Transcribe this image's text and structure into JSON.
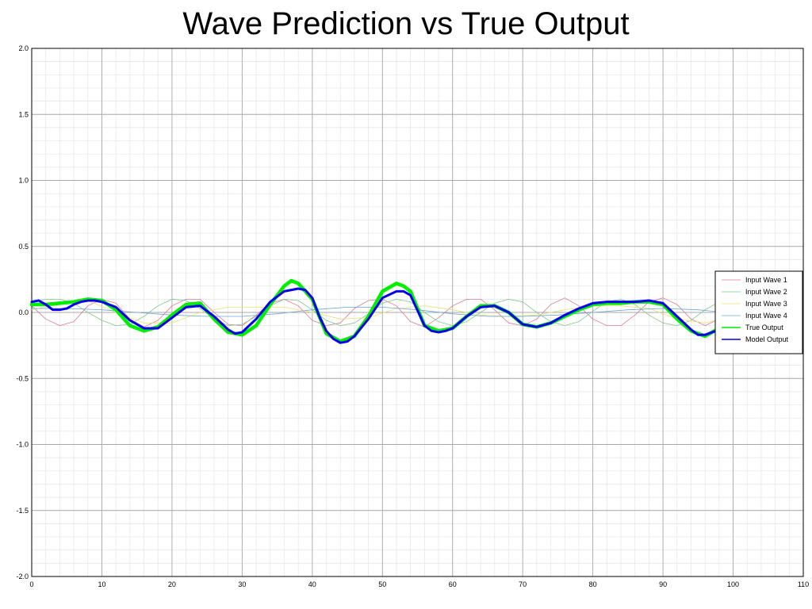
{
  "chart_data": {
    "type": "line",
    "title": "Wave Prediction vs True Output",
    "xlabel": "",
    "ylabel": "",
    "xlim": [
      0,
      110
    ],
    "ylim": [
      -2.0,
      2.0
    ],
    "x_ticks": [
      0,
      10,
      20,
      30,
      40,
      50,
      60,
      70,
      80,
      90,
      100,
      110
    ],
    "y_ticks": [
      "2.0",
      "1.5",
      "1.0",
      "0.5",
      "0.0",
      "-0.5",
      "-1.0",
      "-1.5",
      "-2.0"
    ],
    "grid": true,
    "legend_position": "right",
    "series": [
      {
        "name": "Input Wave 1",
        "color": "#d97a9a",
        "width": 0.8,
        "x": [
          0,
          2,
          4,
          6,
          8,
          10,
          12,
          14,
          16,
          18,
          20,
          22,
          24,
          26,
          28,
          30,
          32,
          34,
          36,
          38,
          40,
          42,
          44,
          46,
          48,
          50,
          52,
          54,
          56,
          58,
          60,
          62,
          64,
          66,
          68,
          70,
          72,
          74,
          76,
          78,
          80,
          82,
          84,
          86,
          88,
          90,
          92,
          94,
          96,
          98
        ],
        "y": [
          0.05,
          -0.05,
          -0.1,
          -0.07,
          0.05,
          0.1,
          0.07,
          -0.05,
          -0.11,
          -0.06,
          0.05,
          0.1,
          0.1,
          0.0,
          -0.09,
          -0.1,
          -0.02,
          0.07,
          0.1,
          0.05,
          -0.06,
          -0.1,
          -0.08,
          0.03,
          0.09,
          0.1,
          0.05,
          -0.07,
          -0.11,
          -0.04,
          0.05,
          0.1,
          0.1,
          0.02,
          -0.08,
          -0.1,
          -0.05,
          0.06,
          0.11,
          0.05,
          -0.05,
          -0.1,
          -0.1,
          -0.02,
          0.08,
          0.11,
          0.06,
          -0.05,
          -0.1,
          -0.05
        ]
      },
      {
        "name": "Input Wave 2",
        "color": "#7fc98a",
        "width": 0.8,
        "x": [
          0,
          2,
          4,
          6,
          8,
          10,
          12,
          14,
          16,
          18,
          20,
          22,
          24,
          26,
          28,
          30,
          32,
          34,
          36,
          38,
          40,
          42,
          44,
          46,
          48,
          50,
          52,
          54,
          56,
          58,
          60,
          62,
          64,
          66,
          68,
          70,
          72,
          74,
          76,
          78,
          80,
          82,
          84,
          86,
          88,
          90,
          92,
          94,
          96,
          98
        ],
        "y": [
          0.08,
          0.1,
          0.1,
          0.07,
          0.0,
          -0.06,
          -0.1,
          -0.09,
          -0.03,
          0.05,
          0.1,
          0.09,
          0.03,
          -0.05,
          -0.1,
          -0.09,
          -0.03,
          0.05,
          0.1,
          0.09,
          0.02,
          -0.06,
          -0.1,
          -0.08,
          -0.01,
          0.07,
          0.1,
          0.08,
          0.0,
          -0.07,
          -0.1,
          -0.07,
          0.0,
          0.07,
          0.1,
          0.08,
          0.0,
          -0.07,
          -0.1,
          -0.07,
          0.01,
          0.08,
          0.1,
          0.06,
          -0.02,
          -0.08,
          -0.1,
          -0.06,
          0.02,
          0.08
        ]
      },
      {
        "name": "Input Wave 3",
        "color": "#e8e07a",
        "width": 0.8,
        "x": [
          0,
          4,
          8,
          12,
          16,
          20,
          24,
          28,
          32,
          36,
          40,
          44,
          48,
          52,
          56,
          60,
          64,
          68,
          72,
          76,
          80,
          84,
          88,
          92,
          96,
          99
        ],
        "y": [
          0.02,
          0.06,
          0.09,
          0.0,
          -0.08,
          -0.08,
          0.0,
          0.04,
          0.04,
          0.04,
          0.0,
          -0.05,
          -0.04,
          0.03,
          0.05,
          0.02,
          -0.02,
          -0.03,
          -0.02,
          0.02,
          0.05,
          0.05,
          0.03,
          -0.05,
          -0.08,
          -0.04
        ]
      },
      {
        "name": "Input Wave 4",
        "color": "#6aa6d6",
        "width": 0.8,
        "x": [
          0,
          5,
          10,
          15,
          20,
          25,
          30,
          35,
          40,
          45,
          50,
          55,
          60,
          65,
          70,
          75,
          80,
          85,
          90,
          95,
          99
        ],
        "y": [
          0.03,
          0.03,
          0.02,
          0.0,
          -0.02,
          -0.03,
          -0.03,
          -0.01,
          0.02,
          0.04,
          0.04,
          0.02,
          -0.01,
          -0.03,
          -0.03,
          -0.02,
          0.0,
          0.02,
          0.03,
          0.02,
          0.0
        ]
      },
      {
        "name": "True Output",
        "color": "#00ee00",
        "width": 4.5,
        "x": [
          0,
          2,
          4,
          6,
          8,
          10,
          12,
          14,
          16,
          18,
          20,
          22,
          24,
          26,
          28,
          30,
          32,
          34,
          36,
          37,
          38,
          40,
          42,
          44,
          46,
          48,
          50,
          52,
          53,
          54,
          56,
          58,
          60,
          62,
          64,
          66,
          68,
          70,
          72,
          74,
          76,
          78,
          80,
          82,
          84,
          86,
          88,
          90,
          92,
          94,
          96,
          98,
          99
        ],
        "y": [
          0.06,
          0.06,
          0.07,
          0.08,
          0.1,
          0.09,
          0.02,
          -0.1,
          -0.14,
          -0.11,
          -0.02,
          0.06,
          0.07,
          -0.05,
          -0.15,
          -0.17,
          -0.1,
          0.06,
          0.2,
          0.24,
          0.22,
          0.1,
          -0.16,
          -0.22,
          -0.18,
          -0.03,
          0.16,
          0.22,
          0.2,
          0.16,
          -0.1,
          -0.14,
          -0.12,
          -0.03,
          0.05,
          0.05,
          0.0,
          -0.09,
          -0.11,
          -0.08,
          -0.03,
          0.02,
          0.06,
          0.07,
          0.07,
          0.08,
          0.08,
          0.06,
          -0.05,
          -0.14,
          -0.18,
          -0.12,
          -0.1
        ]
      },
      {
        "name": "Model Output",
        "color": "#0000ee",
        "width": 3,
        "x": [
          0,
          1,
          2,
          3,
          4,
          5,
          6,
          7,
          8,
          9,
          10,
          11,
          12,
          14,
          16,
          18,
          20,
          22,
          24,
          26,
          28,
          29,
          30,
          31,
          32,
          34,
          36,
          38,
          39,
          40,
          41,
          42,
          43,
          44,
          45,
          46,
          48,
          50,
          52,
          53,
          54,
          56,
          57,
          58,
          59,
          60,
          62,
          64,
          66,
          68,
          70,
          72,
          74,
          76,
          78,
          80,
          82,
          84,
          86,
          88,
          90,
          92,
          94,
          95,
          96,
          98,
          99
        ],
        "y": [
          0.08,
          0.09,
          0.06,
          0.02,
          0.02,
          0.03,
          0.06,
          0.08,
          0.09,
          0.09,
          0.08,
          0.06,
          0.04,
          -0.06,
          -0.12,
          -0.12,
          -0.04,
          0.04,
          0.05,
          -0.03,
          -0.13,
          -0.16,
          -0.15,
          -0.1,
          -0.05,
          0.08,
          0.16,
          0.18,
          0.17,
          0.11,
          -0.03,
          -0.14,
          -0.2,
          -0.23,
          -0.22,
          -0.18,
          -0.05,
          0.11,
          0.16,
          0.16,
          0.13,
          -0.1,
          -0.14,
          -0.15,
          -0.14,
          -0.12,
          -0.03,
          0.04,
          0.05,
          0.0,
          -0.09,
          -0.11,
          -0.08,
          -0.02,
          0.03,
          0.07,
          0.08,
          0.08,
          0.08,
          0.09,
          0.07,
          -0.03,
          -0.13,
          -0.17,
          -0.17,
          -0.13,
          -0.08
        ]
      }
    ]
  }
}
